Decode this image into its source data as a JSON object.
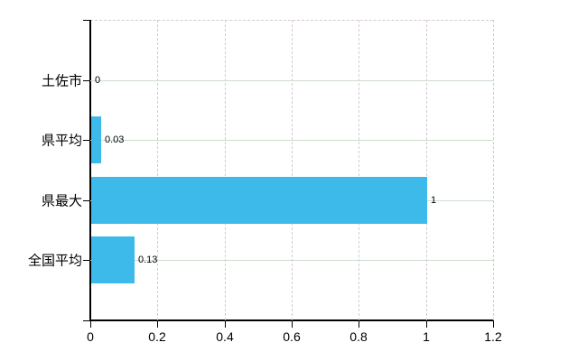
{
  "chart_data": {
    "type": "bar",
    "orientation": "horizontal",
    "title": "",
    "xlabel": "",
    "ylabel": "",
    "categories": [
      "土佐市",
      "県平均",
      "県最大",
      "全国平均"
    ],
    "values": [
      0,
      0.03,
      1,
      0.13
    ],
    "value_labels": [
      "0",
      "0.03",
      "1",
      "0.13"
    ],
    "x_ticks": [
      0,
      0.2,
      0.4,
      0.6,
      0.8,
      1,
      1.2
    ],
    "x_tick_labels": [
      "0",
      "0.2",
      "0.4",
      "0.6",
      "0.8",
      "1",
      "1.2"
    ],
    "xlim": [
      0,
      1.2
    ],
    "grid": true,
    "legend_position": "none",
    "colors": {
      "bar": "#3db9ea",
      "horizontal_gridline": "#d0ddd0",
      "vertical_gridline": "#d6cad4",
      "axis": "#000000",
      "text": "#000000",
      "background": "#ffffff"
    }
  }
}
